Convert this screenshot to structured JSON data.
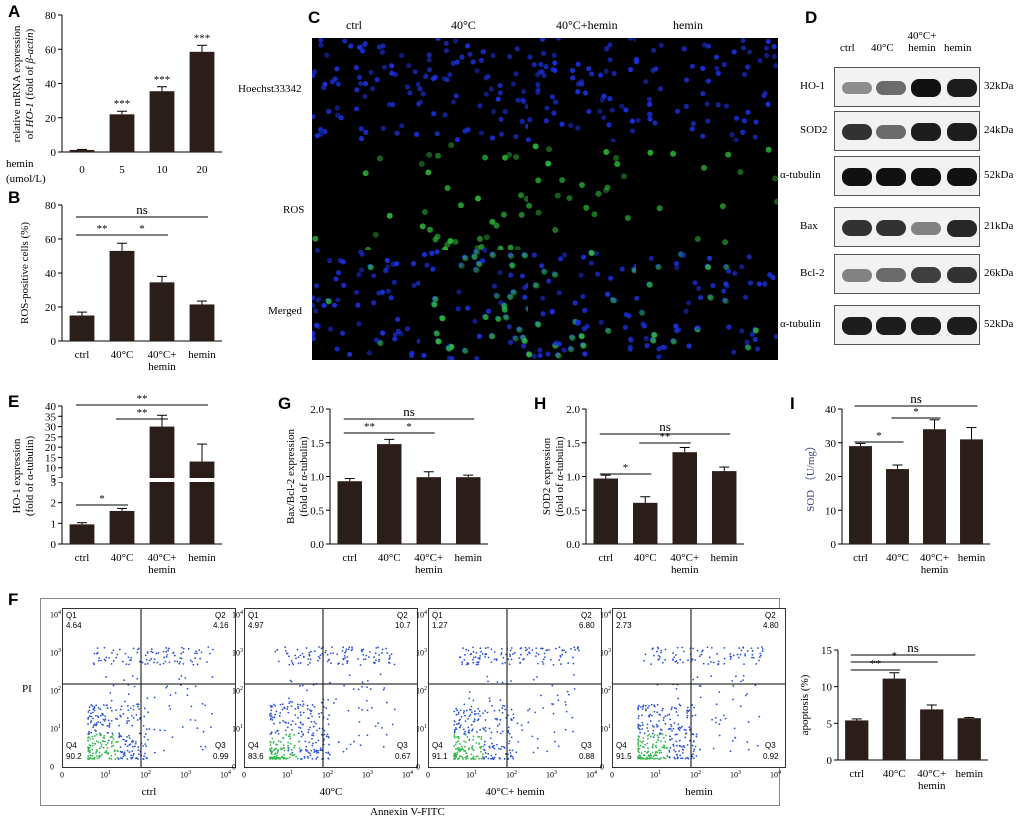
{
  "panels": {
    "A": "A",
    "B": "B",
    "C": "C",
    "D": "D",
    "E": "E",
    "F": "F",
    "G": "G",
    "H": "H",
    "I": "I"
  },
  "colors": {
    "bar": "#2b1d19",
    "nuclei": "#1a2fd6",
    "ros": "#2ec23c"
  },
  "chart_data": [
    {
      "id": "A",
      "type": "bar",
      "categories": [
        "0",
        "5",
        "10",
        "20"
      ],
      "values": [
        1.2,
        22,
        35.5,
        58.5
      ],
      "errors": [
        0.3,
        1.8,
        2.6,
        3.8
      ],
      "row_label": "hemin",
      "unit_label": "(umol/L)",
      "ylabel_parts": [
        "relative mRNA expression",
        "of ",
        "HO-1",
        " (fold of ",
        "β-actin",
        ")"
      ],
      "ylim": [
        0,
        80
      ],
      "yticks": [
        "0",
        "20",
        "40",
        "60",
        "80"
      ],
      "sig": [
        "",
        "***",
        "***",
        "***"
      ]
    },
    {
      "id": "B",
      "type": "bar",
      "categories": [
        "ctrl",
        "40°C",
        "40°C+ hemin",
        "hemin"
      ],
      "values": [
        15,
        53,
        34.5,
        21.5
      ],
      "errors": [
        2,
        4.5,
        3.5,
        2
      ],
      "ylabel": "ROS-positive cells (%)",
      "ylim": [
        0,
        80
      ],
      "yticks": [
        "0",
        "20",
        "40",
        "60",
        "80"
      ],
      "comparisons": [
        {
          "from": 0,
          "to": 1,
          "label": "**"
        },
        {
          "from": 1,
          "to": 2,
          "label": "*"
        },
        {
          "from": 0,
          "to": 3,
          "label": "ns"
        }
      ]
    },
    {
      "id": "E",
      "type": "bar",
      "broken_axis": true,
      "categories": [
        "ctrl",
        "40°C",
        "40°C+ hemin",
        "hemin"
      ],
      "values": [
        0.95,
        1.6,
        30,
        13
      ],
      "errors": [
        0.08,
        0.12,
        5.5,
        8.5
      ],
      "ylabel_lines": [
        "HO-1  expression",
        "(fold of α-tubulin)"
      ],
      "yticks_lower": [
        "0",
        "1",
        "2",
        "3"
      ],
      "yticks_upper": [
        "5",
        "10",
        "15",
        "20",
        "25",
        "30",
        "35",
        "40"
      ],
      "comparisons": [
        {
          "from": 0,
          "to": 1,
          "label": "*"
        },
        {
          "from": 1,
          "to": 2,
          "label": "**"
        },
        {
          "from": 0,
          "to": 3,
          "label": "**"
        }
      ]
    },
    {
      "id": "G",
      "type": "bar",
      "categories": [
        "ctrl",
        "40°C",
        "40°C+ hemin",
        "hemin"
      ],
      "values": [
        0.93,
        1.48,
        0.99,
        0.99
      ],
      "errors": [
        0.04,
        0.07,
        0.08,
        0.03
      ],
      "ylabel_lines": [
        "Bax/Bcl-2 expression",
        "(fold of α-tubulin)"
      ],
      "ylim": [
        0,
        2.0
      ],
      "yticks": [
        "0.0",
        "0.5",
        "1.0",
        "1.5",
        "2.0"
      ],
      "comparisons": [
        {
          "from": 0,
          "to": 1,
          "label": "**"
        },
        {
          "from": 1,
          "to": 2,
          "label": "*"
        },
        {
          "from": 0,
          "to": 3,
          "label": "ns"
        }
      ]
    },
    {
      "id": "H",
      "type": "bar",
      "categories": [
        "ctrl",
        "40°C",
        "40°C+ hemin",
        "hemin"
      ],
      "values": [
        0.97,
        0.61,
        1.36,
        1.08
      ],
      "errors": [
        0.05,
        0.09,
        0.07,
        0.06
      ],
      "ylabel_lines": [
        "SOD2 expression",
        "(fold of α-tubulin)"
      ],
      "ylim": [
        0,
        2.0
      ],
      "yticks": [
        "0.0",
        "0.5",
        "1.0",
        "1.5",
        "2.0"
      ],
      "comparisons": [
        {
          "from": 0,
          "to": 1,
          "label": "*"
        },
        {
          "from": 1,
          "to": 2,
          "label": "**"
        },
        {
          "from": 0,
          "to": 3,
          "label": "ns"
        }
      ]
    },
    {
      "id": "I",
      "type": "bar",
      "categories": [
        "ctrl",
        "40°C",
        "40°C+ hemin",
        "hemin"
      ],
      "values": [
        29,
        22.2,
        34,
        31
      ],
      "errors": [
        0.8,
        1.2,
        2.8,
        3.5
      ],
      "ylabel": "SOD （U/mg）",
      "ylim": [
        0,
        40
      ],
      "yticks": [
        "0",
        "10",
        "20",
        "30",
        "40"
      ],
      "comparisons": [
        {
          "from": 0,
          "to": 1,
          "label": "*"
        },
        {
          "from": 1,
          "to": 2,
          "label": "*"
        },
        {
          "from": 0,
          "to": 3,
          "label": "ns"
        }
      ]
    },
    {
      "id": "F2",
      "type": "bar",
      "categories": [
        "ctrl",
        "40°C",
        "40°C+ hemin",
        "hemin"
      ],
      "values": [
        5.4,
        11.1,
        6.9,
        5.7
      ],
      "errors": [
        0.2,
        0.8,
        0.6,
        0.1
      ],
      "ylabel": "apoptosis (%)",
      "ylim": [
        0,
        15
      ],
      "yticks": [
        "0",
        "5",
        "10",
        "15"
      ],
      "comparisons": [
        {
          "from": 0,
          "to": 1,
          "label": "**"
        },
        {
          "from": 0,
          "to": 2,
          "label": "*"
        },
        {
          "from": 0,
          "to": 3,
          "label": "ns"
        }
      ]
    },
    {
      "id": "F",
      "type": "scatter",
      "xlabel": "Annexin V-FITC",
      "ylabel": "PI",
      "axis_ticks": [
        "0",
        "10",
        "10",
        "10",
        "10"
      ],
      "axis_exponents": [
        "",
        "1",
        "2",
        "3",
        "4"
      ],
      "plots": [
        {
          "label": "ctrl",
          "Q1": "4.64",
          "Q2": "4.16",
          "Q3": "0.99",
          "Q4": "90.2",
          "q1_name": "Q1",
          "q2_name": "Q2",
          "q3_name": "Q3",
          "q4_name": "Q4"
        },
        {
          "label": "40°C",
          "Q1": "4.97",
          "Q2": "10.7",
          "Q3": "0.67",
          "Q4": "83.6",
          "q1_name": "Q1",
          "q2_name": "Q2",
          "q3_name": "Q3",
          "q4_name": "Q4"
        },
        {
          "label": "40°C+ hemin",
          "Q1": "1.27",
          "Q2": "6.80",
          "Q3": "0.88",
          "Q4": "91.1",
          "q1_name": "Q1",
          "q2_name": "Q2",
          "q3_name": "Q3",
          "q4_name": "Q4"
        },
        {
          "label": "hemin",
          "Q1": "2.73",
          "Q2": "4.80",
          "Q3": "0.92",
          "Q4": "91.5",
          "q1_name": "Q1",
          "q2_name": "Q2",
          "q3_name": "Q3",
          "q4_name": "Q4"
        }
      ]
    }
  ],
  "microscopy": {
    "columns": [
      "ctrl",
      "40°C",
      "40°C+hemin",
      "hemin"
    ],
    "rows": [
      "Hoechst33342",
      "ROS",
      "Merged"
    ]
  },
  "western": {
    "columns": [
      "ctrl",
      "40°C",
      "40°C+ hemin",
      "hemin"
    ],
    "proteins": [
      {
        "name": "HO-1",
        "size": "32kDa",
        "intensity": [
          0.45,
          0.6,
          1.0,
          0.95
        ]
      },
      {
        "name": "SOD2",
        "size": "24kDa",
        "intensity": [
          0.85,
          0.6,
          0.95,
          0.95
        ]
      },
      {
        "name": "α-tubulin",
        "size": "52kDa",
        "intensity": [
          1,
          1,
          1,
          1
        ]
      },
      {
        "name": "Bax",
        "size": "21kDa",
        "intensity": [
          0.85,
          0.85,
          0.5,
          0.9
        ]
      },
      {
        "name": "Bcl-2",
        "size": "26kDa",
        "intensity": [
          0.5,
          0.6,
          0.8,
          0.85
        ]
      },
      {
        "name": "α-tubulin",
        "size": "52kDa",
        "intensity": [
          0.95,
          0.95,
          0.95,
          0.95
        ]
      }
    ]
  }
}
